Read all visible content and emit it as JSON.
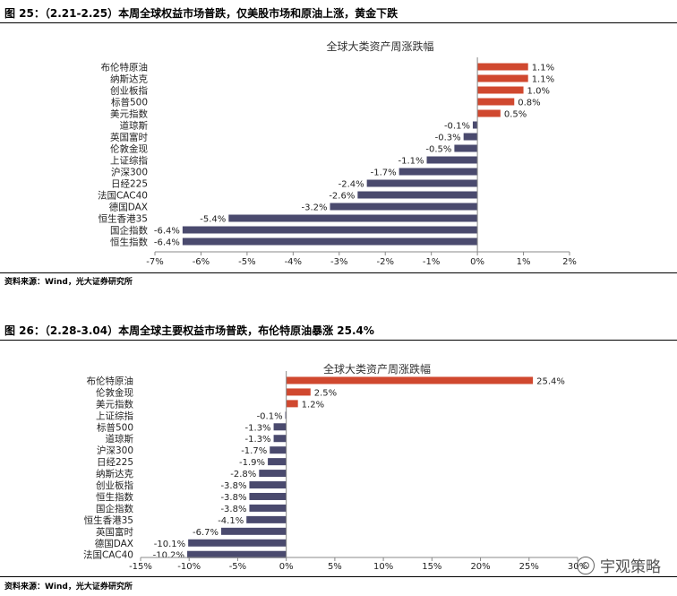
{
  "figures": [
    {
      "title": "图 25：（2.21-2.25）本周全球权益市场普跌，仅美股市场和原油上涨，黄金下跌",
      "source": "资料来源：Wind，光大证券研究所"
    },
    {
      "title": "图 26：（2.28-3.04）本周全球主要权益市场普跌，布伦特原油暴涨 25.4%",
      "source": "资料来源：Wind，光大证券研究所"
    }
  ],
  "watermark": "宇观策略",
  "colors": {
    "positive": "#d0482f",
    "negative": "#4a4a6e",
    "axis": "#888888"
  },
  "chart_data": [
    {
      "type": "bar",
      "orientation": "horizontal",
      "title": "全球大类资产周涨跌幅",
      "categories": [
        "布伦特原油",
        "纳斯达克",
        "创业板指",
        "标普500",
        "美元指数",
        "道琼斯",
        "英国富时",
        "伦敦金现",
        "上证综指",
        "沪深300",
        "日经225",
        "法国CAC40",
        "德国DAX",
        "恒生香港35",
        "国企指数",
        "恒生指数"
      ],
      "values": [
        1.1,
        1.1,
        1.0,
        0.8,
        0.5,
        -0.1,
        -0.3,
        -0.5,
        -1.1,
        -1.7,
        -2.4,
        -2.6,
        -3.2,
        -5.4,
        -6.4,
        -6.4
      ],
      "value_labels": [
        "1.1%",
        "1.1%",
        "1.0%",
        "0.8%",
        "0.5%",
        "-0.1%",
        "-0.3%",
        "-0.5%",
        "-1.1%",
        "-1.7%",
        "-2.4%",
        "-2.6%",
        "-3.2%",
        "-5.4%",
        "-6.4%",
        "-6.4%"
      ],
      "xlim": [
        -7,
        2
      ],
      "ticks": [
        -7,
        -6,
        -5,
        -4,
        -3,
        -2,
        -1,
        0,
        1,
        2
      ],
      "tick_labels": [
        "-7%",
        "-6%",
        "-5%",
        "-4%",
        "-3%",
        "-2%",
        "-1%",
        "0%",
        "1%",
        "2%"
      ],
      "grid": false,
      "legend": "none"
    },
    {
      "type": "bar",
      "orientation": "horizontal",
      "title": "全球大类资产周涨跌幅",
      "categories": [
        "布伦特原油",
        "伦敦金现",
        "美元指数",
        "上证综指",
        "标普500",
        "道琼斯",
        "沪深300",
        "日经225",
        "纳斯达克",
        "创业板指",
        "恒生指数",
        "国企指数",
        "恒生香港35",
        "英国富时",
        "德国DAX",
        "法国CAC40"
      ],
      "values": [
        25.4,
        2.5,
        1.2,
        -0.1,
        -1.3,
        -1.3,
        -1.7,
        -1.9,
        -2.8,
        -3.8,
        -3.8,
        -3.8,
        -4.1,
        -6.7,
        -10.1,
        -10.2
      ],
      "value_labels": [
        "25.4%",
        "2.5%",
        "1.2%",
        "-0.1%",
        "-1.3%",
        "-1.3%",
        "-1.7%",
        "-1.9%",
        "-2.8%",
        "-3.8%",
        "-3.8%",
        "-3.8%",
        "-4.1%",
        "-6.7%",
        "-10.1%",
        "-10.2%"
      ],
      "xlim": [
        -15,
        30
      ],
      "ticks": [
        -15,
        -10,
        -5,
        0,
        5,
        10,
        15,
        20,
        25,
        30
      ],
      "tick_labels": [
        "-15%",
        "-10%",
        "-5%",
        "0%",
        "5%",
        "10%",
        "15%",
        "20%",
        "25%",
        "30%"
      ],
      "grid": false,
      "legend": "none"
    }
  ]
}
